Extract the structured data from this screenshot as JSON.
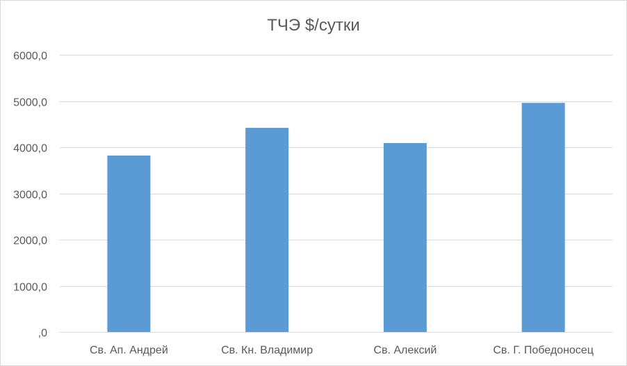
{
  "chart_data": {
    "type": "bar",
    "title": "ТЧЭ $/сутки",
    "xlabel": "",
    "ylabel": "",
    "categories": [
      "Св. Ап. Андрей",
      "Св. Кн. Владимир",
      "Св. Алексий",
      "Св. Г. Победоносец"
    ],
    "values": [
      3820,
      4420,
      4090,
      4960
    ],
    "ylim": [
      0,
      6000
    ],
    "yticks": [
      0,
      1000,
      2000,
      3000,
      4000,
      5000,
      6000
    ],
    "ytick_labels": [
      ",0",
      "1000,0",
      "2000,0",
      "3000,0",
      "4000,0",
      "5000,0",
      "6000,0"
    ],
    "grid": true,
    "legend": "none",
    "bar_color": "#5b9bd5"
  }
}
